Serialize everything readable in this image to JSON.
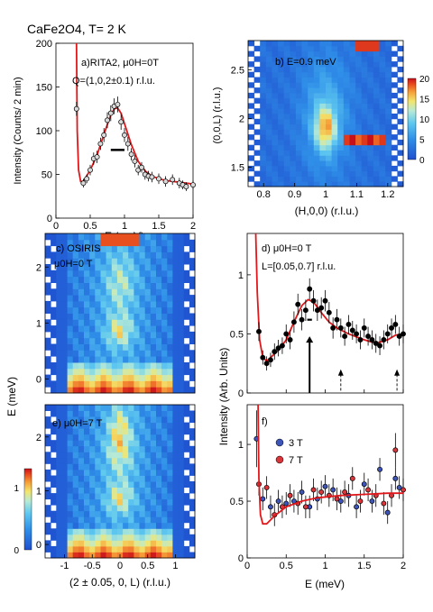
{
  "figure_title": "CaFe2O4, T= 2 K",
  "colors": {
    "fit": "#e0181b",
    "marker_3T": "#3d55b8",
    "marker_7T": "#d8363b",
    "map_scale": [
      "#1f4fd0",
      "#2f8fe8",
      "#5fc8f0",
      "#b7ead6",
      "#f3e56c",
      "#f6a13a",
      "#e84a1e",
      "#c8101b"
    ]
  },
  "chart_data": [
    {
      "id": "a",
      "type": "scatter",
      "panel_label": "a)RITA2, μ0H=0T",
      "annotation": "Q=(1,0,2±0.1) r.l.u.",
      "xlabel": "E (meV)",
      "ylabel": "Intensity (Counts/ 2 min)",
      "xlim": [
        0,
        2
      ],
      "ylim": [
        0,
        200
      ],
      "xticks": [
        "0",
        "0.5",
        "1",
        "1.5",
        "2"
      ],
      "yticks": [
        "0",
        "50",
        "100",
        "150",
        "200"
      ],
      "points": [
        {
          "x": 0.3,
          "y": 125,
          "e": 8
        },
        {
          "x": 0.4,
          "y": 40,
          "e": 5
        },
        {
          "x": 0.45,
          "y": 45,
          "e": 5
        },
        {
          "x": 0.5,
          "y": 55,
          "e": 6
        },
        {
          "x": 0.55,
          "y": 68,
          "e": 7
        },
        {
          "x": 0.6,
          "y": 70,
          "e": 7
        },
        {
          "x": 0.65,
          "y": 85,
          "e": 7
        },
        {
          "x": 0.7,
          "y": 95,
          "e": 8
        },
        {
          "x": 0.75,
          "y": 112,
          "e": 9
        },
        {
          "x": 0.8,
          "y": 120,
          "e": 9
        },
        {
          "x": 0.85,
          "y": 128,
          "e": 9
        },
        {
          "x": 0.9,
          "y": 130,
          "e": 9
        },
        {
          "x": 0.95,
          "y": 110,
          "e": 9
        },
        {
          "x": 1.0,
          "y": 95,
          "e": 8
        },
        {
          "x": 1.05,
          "y": 85,
          "e": 8
        },
        {
          "x": 1.1,
          "y": 73,
          "e": 7
        },
        {
          "x": 1.15,
          "y": 65,
          "e": 7
        },
        {
          "x": 1.2,
          "y": 55,
          "e": 6
        },
        {
          "x": 1.25,
          "y": 58,
          "e": 6
        },
        {
          "x": 1.3,
          "y": 50,
          "e": 6
        },
        {
          "x": 1.35,
          "y": 48,
          "e": 6
        },
        {
          "x": 1.4,
          "y": 47,
          "e": 6
        },
        {
          "x": 1.5,
          "y": 45,
          "e": 6
        },
        {
          "x": 1.6,
          "y": 42,
          "e": 6
        },
        {
          "x": 1.7,
          "y": 44,
          "e": 6
        },
        {
          "x": 1.8,
          "y": 40,
          "e": 6
        },
        {
          "x": 1.85,
          "y": 38,
          "e": 5
        },
        {
          "x": 1.9,
          "y": 36,
          "e": 5
        },
        {
          "x": 2.0,
          "y": 38,
          "e": 5
        }
      ],
      "fit": [
        [
          0.3,
          200
        ],
        [
          0.31,
          100
        ],
        [
          0.33,
          55
        ],
        [
          0.36,
          42
        ],
        [
          0.4,
          42
        ],
        [
          0.5,
          55
        ],
        [
          0.6,
          72
        ],
        [
          0.7,
          96
        ],
        [
          0.8,
          118
        ],
        [
          0.85,
          125
        ],
        [
          0.9,
          126
        ],
        [
          0.95,
          120
        ],
        [
          1.0,
          108
        ],
        [
          1.1,
          84
        ],
        [
          1.2,
          65
        ],
        [
          1.3,
          54
        ],
        [
          1.4,
          48
        ],
        [
          1.5,
          45
        ],
        [
          1.6,
          43
        ],
        [
          1.8,
          41
        ],
        [
          2.0,
          39
        ]
      ],
      "resolution_bar": {
        "x0": 0.8,
        "x1": 1.0,
        "y": 78
      }
    },
    {
      "id": "b",
      "type": "heatmap",
      "panel_label": "b) E=0.9 meV",
      "xlabel": "(H,0,0) (r.l.u.)",
      "ylabel": "(0,0,L) (r.l.u.)",
      "xlim": [
        0.75,
        1.25
      ],
      "ylim": [
        1.3,
        2.8
      ],
      "xticks": [
        "0.8",
        "0.9",
        "1",
        "1.1",
        "1.2"
      ],
      "yticks": [
        "1.5",
        "2",
        "2.5"
      ],
      "colorbar": {
        "ticks": [
          "0",
          "5",
          "10",
          "15",
          "20"
        ],
        "range": [
          0,
          20
        ]
      }
    },
    {
      "id": "c",
      "type": "heatmap",
      "panel_label": "c) OSIRIS",
      "annotation": "μ0H=0 T",
      "ylim": [
        -0.25,
        2.6
      ],
      "yticks": [
        "0",
        "1",
        "2"
      ]
    },
    {
      "id": "d",
      "type": "scatter",
      "panel_label": "d) μ0H=0 T",
      "annotation": "L=[0.05,0.7] r.l.u.",
      "xlim": [
        0,
        2
      ],
      "ylim": [
        0,
        1.35
      ],
      "yticks": [
        "0",
        "0.5",
        "1"
      ],
      "points": [
        {
          "x": 0.15,
          "y": 0.52,
          "e": 0.08
        },
        {
          "x": 0.2,
          "y": 0.3,
          "e": 0.06
        },
        {
          "x": 0.25,
          "y": 0.25,
          "e": 0.06
        },
        {
          "x": 0.3,
          "y": 0.28,
          "e": 0.06
        },
        {
          "x": 0.35,
          "y": 0.35,
          "e": 0.07
        },
        {
          "x": 0.4,
          "y": 0.38,
          "e": 0.07
        },
        {
          "x": 0.45,
          "y": 0.4,
          "e": 0.07
        },
        {
          "x": 0.5,
          "y": 0.5,
          "e": 0.08
        },
        {
          "x": 0.55,
          "y": 0.45,
          "e": 0.08
        },
        {
          "x": 0.6,
          "y": 0.6,
          "e": 0.09
        },
        {
          "x": 0.65,
          "y": 0.75,
          "e": 0.09
        },
        {
          "x": 0.7,
          "y": 0.62,
          "e": 0.09
        },
        {
          "x": 0.75,
          "y": 0.7,
          "e": 0.09
        },
        {
          "x": 0.8,
          "y": 0.88,
          "e": 0.09
        },
        {
          "x": 0.85,
          "y": 0.78,
          "e": 0.09
        },
        {
          "x": 0.9,
          "y": 0.7,
          "e": 0.09
        },
        {
          "x": 0.95,
          "y": 0.72,
          "e": 0.09
        },
        {
          "x": 1.0,
          "y": 0.78,
          "e": 0.09
        },
        {
          "x": 1.05,
          "y": 0.68,
          "e": 0.09
        },
        {
          "x": 1.1,
          "y": 0.55,
          "e": 0.09
        },
        {
          "x": 1.15,
          "y": 0.62,
          "e": 0.09
        },
        {
          "x": 1.2,
          "y": 0.55,
          "e": 0.08
        },
        {
          "x": 1.25,
          "y": 0.48,
          "e": 0.08
        },
        {
          "x": 1.3,
          "y": 0.58,
          "e": 0.08
        },
        {
          "x": 1.35,
          "y": 0.53,
          "e": 0.08
        },
        {
          "x": 1.4,
          "y": 0.5,
          "e": 0.08
        },
        {
          "x": 1.45,
          "y": 0.45,
          "e": 0.08
        },
        {
          "x": 1.5,
          "y": 0.55,
          "e": 0.08
        },
        {
          "x": 1.55,
          "y": 0.48,
          "e": 0.08
        },
        {
          "x": 1.6,
          "y": 0.45,
          "e": 0.08
        },
        {
          "x": 1.65,
          "y": 0.42,
          "e": 0.08
        },
        {
          "x": 1.7,
          "y": 0.4,
          "e": 0.08
        },
        {
          "x": 1.75,
          "y": 0.45,
          "e": 0.08
        },
        {
          "x": 1.8,
          "y": 0.5,
          "e": 0.08
        },
        {
          "x": 1.85,
          "y": 0.55,
          "e": 0.08
        },
        {
          "x": 1.9,
          "y": 0.58,
          "e": 0.08
        },
        {
          "x": 1.95,
          "y": 0.48,
          "e": 0.08
        },
        {
          "x": 2.0,
          "y": 0.5,
          "e": 0.08
        }
      ],
      "fit": [
        [
          0.11,
          1.35
        ],
        [
          0.13,
          0.85
        ],
        [
          0.16,
          0.45
        ],
        [
          0.2,
          0.3
        ],
        [
          0.25,
          0.27
        ],
        [
          0.3,
          0.3
        ],
        [
          0.4,
          0.36
        ],
        [
          0.5,
          0.45
        ],
        [
          0.6,
          0.6
        ],
        [
          0.7,
          0.74
        ],
        [
          0.78,
          0.79
        ],
        [
          0.85,
          0.77
        ],
        [
          0.95,
          0.68
        ],
        [
          1.05,
          0.6
        ],
        [
          1.15,
          0.55
        ],
        [
          1.3,
          0.5
        ],
        [
          1.5,
          0.45
        ],
        [
          1.65,
          0.42
        ],
        [
          1.8,
          0.45
        ],
        [
          1.9,
          0.49
        ],
        [
          2.0,
          0.5
        ]
      ],
      "resolution_bar": {
        "x0": 0.77,
        "x1": 0.83,
        "y": 0.62
      },
      "arrows": [
        {
          "x": 0.8,
          "y0": 0.0,
          "y1": 0.48,
          "style": "solid"
        },
        {
          "x": 1.2,
          "y0": 0.02,
          "y1": 0.2,
          "style": "dashed"
        },
        {
          "x": 1.92,
          "y0": 0.02,
          "y1": 0.2,
          "style": "dashed"
        }
      ]
    },
    {
      "id": "e",
      "type": "heatmap",
      "panel_label": "e) μ0H=7 T",
      "xlabel": "(2 ± 0.05, 0, L) (r.l.u.)",
      "xlim": [
        -1.35,
        1.35
      ],
      "ylim": [
        -0.25,
        2.6
      ],
      "xticks": [
        "-1",
        "-0.5",
        "0",
        "0.5",
        "1"
      ],
      "yticks": [
        "0",
        "1",
        "2"
      ],
      "colorbar": {
        "ticks": [
          "0",
          "1"
        ],
        "range": [
          0,
          1.3
        ]
      }
    },
    {
      "id": "f",
      "type": "scatter",
      "panel_label": "f)",
      "xlabel": "E (meV)",
      "xlim": [
        0,
        2
      ],
      "ylim": [
        0,
        1.35
      ],
      "xticks": [
        "0",
        "0.5",
        "1",
        "1.5",
        "2"
      ],
      "yticks": [
        "0",
        "0.5",
        "1"
      ],
      "legend": [
        {
          "name": "3 T",
          "color": "#3d55b8"
        },
        {
          "name": "7 T",
          "color": "#d8363b"
        }
      ],
      "series": [
        {
          "name": "3 T",
          "points": [
            {
              "x": 0.12,
              "y": 1.05,
              "e": 0.25
            },
            {
              "x": 0.2,
              "y": 0.52,
              "e": 0.1
            },
            {
              "x": 0.3,
              "y": 0.45,
              "e": 0.1
            },
            {
              "x": 0.4,
              "y": 0.5,
              "e": 0.1
            },
            {
              "x": 0.5,
              "y": 0.48,
              "e": 0.1
            },
            {
              "x": 0.6,
              "y": 0.5,
              "e": 0.1
            },
            {
              "x": 0.7,
              "y": 0.58,
              "e": 0.1
            },
            {
              "x": 0.8,
              "y": 0.45,
              "e": 0.1
            },
            {
              "x": 0.9,
              "y": 0.52,
              "e": 0.1
            },
            {
              "x": 1.0,
              "y": 0.63,
              "e": 0.1
            },
            {
              "x": 1.1,
              "y": 0.6,
              "e": 0.1
            },
            {
              "x": 1.2,
              "y": 0.5,
              "e": 0.1
            },
            {
              "x": 1.3,
              "y": 0.55,
              "e": 0.1
            },
            {
              "x": 1.4,
              "y": 0.45,
              "e": 0.1
            },
            {
              "x": 1.5,
              "y": 0.65,
              "e": 0.1
            },
            {
              "x": 1.6,
              "y": 0.5,
              "e": 0.1
            },
            {
              "x": 1.7,
              "y": 0.78,
              "e": 0.1
            },
            {
              "x": 1.8,
              "y": 0.4,
              "e": 0.1
            },
            {
              "x": 1.9,
              "y": 0.7,
              "e": 0.1
            },
            {
              "x": 1.95,
              "y": 0.62,
              "e": 0.1
            }
          ]
        },
        {
          "name": "7 T",
          "points": [
            {
              "x": 0.15,
              "y": 0.65,
              "e": 0.1
            },
            {
              "x": 0.25,
              "y": 0.62,
              "e": 0.1
            },
            {
              "x": 0.35,
              "y": 0.38,
              "e": 0.1
            },
            {
              "x": 0.45,
              "y": 0.45,
              "e": 0.1
            },
            {
              "x": 0.55,
              "y": 0.55,
              "e": 0.1
            },
            {
              "x": 0.65,
              "y": 0.48,
              "e": 0.1
            },
            {
              "x": 0.75,
              "y": 0.45,
              "e": 0.1
            },
            {
              "x": 0.85,
              "y": 0.6,
              "e": 0.1
            },
            {
              "x": 0.95,
              "y": 0.58,
              "e": 0.1
            },
            {
              "x": 1.05,
              "y": 0.55,
              "e": 0.1
            },
            {
              "x": 1.15,
              "y": 0.52,
              "e": 0.1
            },
            {
              "x": 1.25,
              "y": 0.58,
              "e": 0.1
            },
            {
              "x": 1.35,
              "y": 0.7,
              "e": 0.1
            },
            {
              "x": 1.45,
              "y": 0.5,
              "e": 0.1
            },
            {
              "x": 1.55,
              "y": 0.6,
              "e": 0.1
            },
            {
              "x": 1.65,
              "y": 0.55,
              "e": 0.1
            },
            {
              "x": 1.75,
              "y": 0.48,
              "e": 0.1
            },
            {
              "x": 1.85,
              "y": 0.55,
              "e": 0.1
            },
            {
              "x": 1.9,
              "y": 0.95,
              "e": 0.15
            },
            {
              "x": 2.0,
              "y": 0.6,
              "e": 0.1
            }
          ]
        }
      ],
      "fit": [
        [
          0.14,
          1.35
        ],
        [
          0.15,
          0.7
        ],
        [
          0.17,
          0.38
        ],
        [
          0.2,
          0.3
        ],
        [
          0.25,
          0.3
        ],
        [
          0.35,
          0.37
        ],
        [
          0.5,
          0.45
        ],
        [
          0.7,
          0.5
        ],
        [
          0.9,
          0.53
        ],
        [
          1.2,
          0.55
        ],
        [
          1.5,
          0.56
        ],
        [
          1.8,
          0.57
        ],
        [
          2.0,
          0.57
        ]
      ]
    }
  ],
  "shared_labels": {
    "ylabel_left": "E (meV)",
    "ylabel_right": "Intensity (Arb. Units)"
  }
}
